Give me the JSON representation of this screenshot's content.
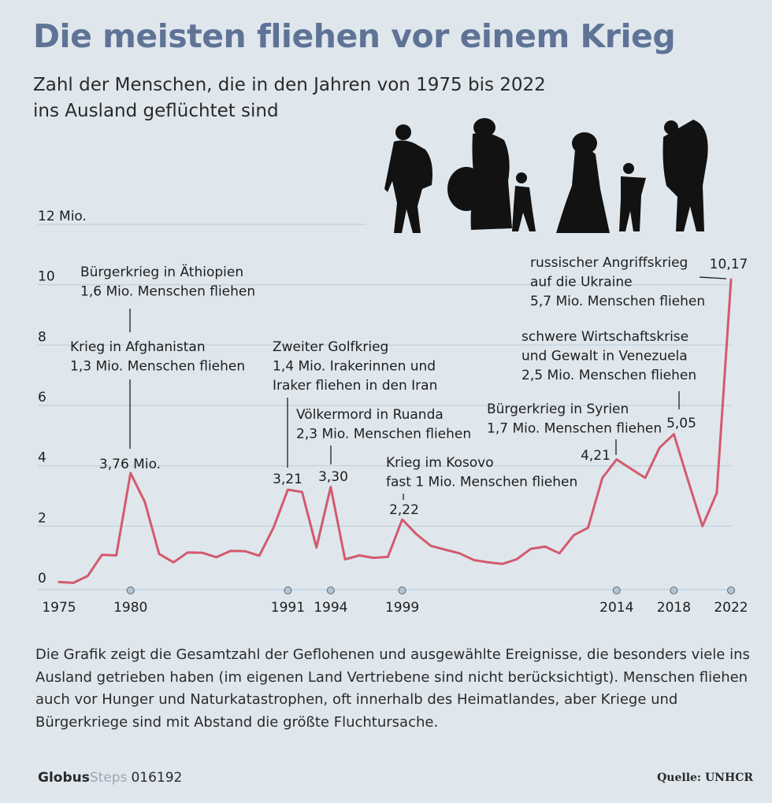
{
  "title": "Die meisten fliehen vor einem Krieg",
  "subtitle_line1": "Zahl der Menschen, die in den Jahren von 1975 bis 2022",
  "subtitle_line2": "ins Ausland geflüchtet sind",
  "footnote": "Die Grafik zeigt die Gesamtzahl der Geflohenen und ausgewählte Ereignisse, die besonders viele ins Ausland getrieben haben (im eigenen Land Vertriebene sind nicht berücksichtigt). Menschen fliehen auch vor Hunger und Naturkatastrophen, oft innerhalb des Heimat­landes, aber Kriege und Bürgerkriege sind mit Abstand die größte Fluchtursache.",
  "footer": {
    "brand_bold": "Globus",
    "brand_light": "Steps",
    "number": "016192"
  },
  "source": "Quelle: UNHCR",
  "colors": {
    "line": "#d35a6e",
    "title": "#5f7396",
    "grid": "#bcd0de",
    "background": "#dfe7ed",
    "marker": "#b4c4d0"
  },
  "chart_data": {
    "type": "line",
    "xlim": [
      1975,
      2022
    ],
    "ylim": [
      0,
      12
    ],
    "y_ticks": [
      {
        "value": 0,
        "label": "0"
      },
      {
        "value": 2,
        "label": "2"
      },
      {
        "value": 4,
        "label": "4"
      },
      {
        "value": 6,
        "label": "6"
      },
      {
        "value": 8,
        "label": "8"
      },
      {
        "value": 10,
        "label": "10"
      },
      {
        "value": 12,
        "label": "12 Mio."
      }
    ],
    "x_ticks": [
      1975,
      1980,
      1991,
      1994,
      1999,
      2014,
      2018,
      2022
    ],
    "x_markers": [
      1980,
      1991,
      1994,
      1999,
      2014,
      2018,
      2022
    ],
    "grid": true,
    "x": [
      1975,
      1976,
      1977,
      1978,
      1979,
      1980,
      1981,
      1982,
      1983,
      1984,
      1985,
      1986,
      1987,
      1988,
      1989,
      1990,
      1991,
      1992,
      1993,
      1994,
      1995,
      1996,
      1997,
      1998,
      1999,
      2000,
      2001,
      2002,
      2003,
      2004,
      2005,
      2006,
      2007,
      2008,
      2009,
      2010,
      2011,
      2012,
      2013,
      2014,
      2015,
      2016,
      2017,
      2018,
      2019,
      2020,
      2021,
      2022
    ],
    "y": [
      0.15,
      0.12,
      0.35,
      1.05,
      1.03,
      3.76,
      2.8,
      1.08,
      0.8,
      1.13,
      1.12,
      0.97,
      1.18,
      1.17,
      1.02,
      1.95,
      3.21,
      3.13,
      1.29,
      3.3,
      0.9,
      1.03,
      0.95,
      0.98,
      2.22,
      1.73,
      1.35,
      1.22,
      1.1,
      0.88,
      0.8,
      0.75,
      0.9,
      1.25,
      1.32,
      1.1,
      1.7,
      1.95,
      3.6,
      4.21,
      3.9,
      3.6,
      4.6,
      5.05,
      3.5,
      2.0,
      3.1,
      10.17
    ],
    "value_labels": [
      {
        "x": 1980,
        "y": 3.76,
        "label": "3,76 Mio."
      },
      {
        "x": 1991,
        "y": 3.21,
        "label": "3,21"
      },
      {
        "x": 1994,
        "y": 3.3,
        "label": "3,30"
      },
      {
        "x": 1999,
        "y": 2.22,
        "label": "2,22"
      },
      {
        "x": 2014,
        "y": 4.21,
        "label": "4,21"
      },
      {
        "x": 2018,
        "y": 5.05,
        "label": "5,05"
      },
      {
        "x": 2022,
        "y": 10.17,
        "label": "10,17"
      }
    ],
    "annotations": [
      {
        "year": 1980,
        "lines": [
          "Bürgerkrieg in Äthiopien",
          "1,6 Mio. Menschen fliehen"
        ]
      },
      {
        "year": 1980,
        "lines": [
          "Krieg in Afghanistan",
          "1,3 Mio. Menschen fliehen"
        ]
      },
      {
        "year": 1991,
        "lines": [
          "Zweiter Golfkrieg",
          "1,4 Mio. Irakerinnen und",
          "Iraker fliehen in den Iran"
        ]
      },
      {
        "year": 1994,
        "lines": [
          "Völkermord in Ruanda",
          "2,3 Mio. Menschen fliehen"
        ]
      },
      {
        "year": 1999,
        "lines": [
          "Krieg im Kosovo",
          "fast 1 Mio. Menschen fliehen"
        ]
      },
      {
        "year": 2014,
        "lines": [
          "Bürgerkrieg in Syrien",
          "1,7 Mio. Menschen fliehen"
        ]
      },
      {
        "year": 2018,
        "lines": [
          "schwere Wirtschaftskrise",
          "und Gewalt in Venezuela",
          "2,5 Mio. Menschen fliehen"
        ]
      },
      {
        "year": 2022,
        "lines": [
          "russischer Angriffskrieg",
          "auf die Ukraine",
          "5,7 Mio. Menschen fliehen"
        ]
      }
    ]
  }
}
